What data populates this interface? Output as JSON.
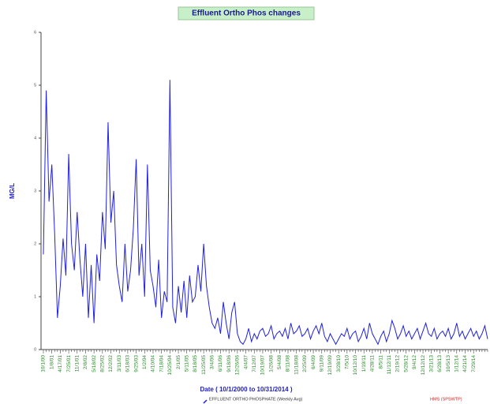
{
  "chart_data": {
    "type": "line",
    "title": "Effluent Ortho Phos changes",
    "y_label": "MG/L",
    "x_label": "Date  ( 10/1/2000  to  10/31/2014 )",
    "footer": "HMS (SPSWTP)",
    "ylim": [
      0,
      6
    ],
    "yticks": [
      0,
      1,
      2,
      3,
      4,
      5,
      6
    ],
    "categories": [
      "10/1/00",
      null,
      null,
      "1/8/01",
      null,
      null,
      "4/17/01",
      null,
      null,
      "7/25/01",
      null,
      null,
      "11/1/01",
      null,
      null,
      "2/8/02",
      null,
      null,
      "5/18/02",
      null,
      null,
      "8/25/02",
      null,
      null,
      "12/2/02",
      null,
      null,
      "3/11/03",
      null,
      null,
      "6/18/03",
      null,
      null,
      "9/25/03",
      null,
      null,
      "1/2/04",
      null,
      null,
      "4/10/04",
      null,
      null,
      "7/18/04",
      null,
      null,
      "10/25/04",
      null,
      null,
      "2/1/05",
      null,
      null,
      "5/11/05",
      null,
      null,
      "8/18/05",
      null,
      null,
      "11/25/05",
      null,
      null,
      "3/4/06",
      null,
      null,
      "6/11/06",
      null,
      null,
      "9/18/06",
      null,
      null,
      "12/26/06",
      null,
      null,
      "4/4/07",
      null,
      null,
      "7/12/07",
      null,
      null,
      "10/19/07",
      null,
      null,
      "1/26/08",
      null,
      null,
      "5/4/08",
      null,
      null,
      "8/11/08",
      null,
      null,
      "11/18/08",
      null,
      null,
      "2/25/09",
      null,
      null,
      "6/4/09",
      null,
      null,
      "9/11/09",
      null,
      null,
      "12/19/09",
      null,
      null,
      "3/28/10",
      null,
      null,
      "7/5/10",
      null,
      null,
      "10/12/10",
      null,
      null,
      "1/19/11",
      null,
      null,
      "4/28/11",
      null,
      null,
      "8/5/11",
      null,
      null,
      "11/12/11",
      null,
      null,
      "2/19/12",
      null,
      null,
      "5/28/12",
      null,
      null,
      "9/4/12",
      null,
      null,
      "12/12/12",
      null,
      null,
      "3/21/13",
      null,
      null,
      "6/28/13",
      null,
      null,
      "10/5/13",
      null,
      null,
      "1/12/14",
      null,
      null,
      "4/21/14",
      null,
      null,
      "7/29/14",
      null,
      null,
      null,
      null,
      null
    ],
    "series": [
      {
        "name": "EFFLUENT ORTHO PHOSPHATE (Weekly Avg)",
        "color": "#2020e0",
        "values": [
          1.8,
          4.9,
          2.8,
          3.5,
          2.2,
          0.6,
          1.2,
          2.1,
          1.4,
          3.7,
          2.0,
          1.5,
          2.6,
          1.7,
          1.0,
          2.0,
          0.6,
          1.6,
          0.5,
          1.8,
          1.3,
          2.6,
          1.9,
          4.3,
          2.4,
          3.0,
          1.6,
          1.2,
          0.9,
          2.0,
          1.1,
          1.5,
          2.3,
          3.6,
          1.4,
          2.0,
          1.0,
          3.5,
          1.5,
          1.2,
          0.8,
          1.7,
          0.6,
          1.1,
          0.9,
          5.1,
          0.8,
          0.5,
          1.2,
          0.7,
          1.3,
          0.6,
          1.4,
          0.9,
          1.0,
          1.6,
          1.1,
          2.0,
          1.2,
          0.8,
          0.5,
          0.4,
          0.6,
          0.3,
          0.9,
          0.5,
          0.2,
          0.7,
          0.9,
          0.3,
          0.15,
          0.1,
          0.2,
          0.4,
          0.15,
          0.3,
          0.2,
          0.35,
          0.4,
          0.25,
          0.3,
          0.45,
          0.2,
          0.3,
          0.35,
          0.25,
          0.4,
          0.2,
          0.5,
          0.3,
          0.35,
          0.45,
          0.25,
          0.3,
          0.4,
          0.2,
          0.35,
          0.45,
          0.3,
          0.5,
          0.25,
          0.15,
          0.3,
          0.2,
          0.1,
          0.2,
          0.3,
          0.25,
          0.4,
          0.2,
          0.3,
          0.35,
          0.15,
          0.25,
          0.4,
          0.2,
          0.5,
          0.3,
          0.2,
          0.1,
          0.25,
          0.35,
          0.15,
          0.3,
          0.55,
          0.4,
          0.2,
          0.3,
          0.45,
          0.25,
          0.35,
          0.2,
          0.3,
          0.4,
          0.2,
          0.35,
          0.5,
          0.3,
          0.25,
          0.4,
          0.2,
          0.3,
          0.35,
          0.25,
          0.4,
          0.2,
          0.3,
          0.5,
          0.25,
          0.35,
          0.2,
          0.3,
          0.4,
          0.25,
          0.35,
          0.2,
          0.3,
          0.45,
          0.2
        ]
      }
    ]
  }
}
